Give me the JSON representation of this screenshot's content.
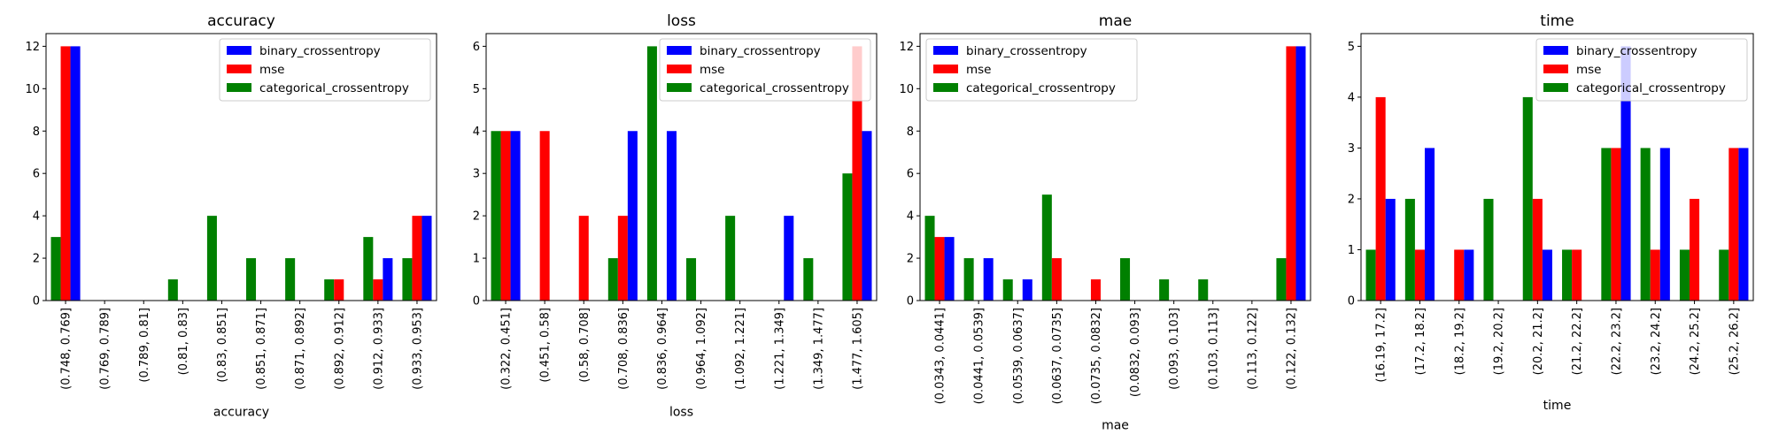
{
  "colors": {
    "binary_crossentropy": "#0000ff",
    "mse": "#ff0000",
    "categorical_crossentropy": "#008000"
  },
  "chart_data": [
    {
      "type": "bar",
      "title": "accuracy",
      "xlabel": "accuracy",
      "ylabel": "",
      "ylim": [
        0,
        12.6
      ],
      "yticks": [
        0,
        2,
        4,
        6,
        8,
        10,
        12
      ],
      "legend_position": "upper right",
      "categories": [
        "(0.748, 0.769]",
        "(0.769, 0.789]",
        "(0.789, 0.81]",
        "(0.81, 0.83]",
        "(0.83, 0.851]",
        "(0.851, 0.871]",
        "(0.871, 0.892]",
        "(0.892, 0.912]",
        "(0.912, 0.933]",
        "(0.933, 0.953]"
      ],
      "series": [
        {
          "name": "categorical_crossentropy",
          "values": [
            3,
            0,
            0,
            1,
            4,
            2,
            2,
            1,
            3,
            2
          ]
        },
        {
          "name": "mse",
          "values": [
            12,
            0,
            0,
            0,
            0,
            0,
            0,
            1,
            1,
            4
          ]
        },
        {
          "name": "binary_crossentropy",
          "values": [
            12,
            0,
            0,
            0,
            0,
            0,
            0,
            0,
            2,
            4
          ]
        }
      ]
    },
    {
      "type": "bar",
      "title": "loss",
      "xlabel": "loss",
      "ylabel": "",
      "ylim": [
        0,
        6.3
      ],
      "yticks": [
        0,
        1,
        2,
        3,
        4,
        5,
        6
      ],
      "legend_position": "upper right",
      "categories": [
        "(0.322, 0.451]",
        "(0.451, 0.58]",
        "(0.58, 0.708]",
        "(0.708, 0.836]",
        "(0.836, 0.964]",
        "(0.964, 1.092]",
        "(1.092, 1.221]",
        "(1.221, 1.349]",
        "(1.349, 1.477]",
        "(1.477, 1.605]"
      ],
      "series": [
        {
          "name": "categorical_crossentropy",
          "values": [
            4,
            0,
            0,
            1,
            6,
            1,
            2,
            0,
            1,
            3
          ]
        },
        {
          "name": "mse",
          "values": [
            4,
            4,
            2,
            2,
            0,
            0,
            0,
            0,
            0,
            6
          ]
        },
        {
          "name": "binary_crossentropy",
          "values": [
            4,
            0,
            0,
            4,
            4,
            0,
            0,
            2,
            0,
            4
          ]
        }
      ]
    },
    {
      "type": "bar",
      "title": "mae",
      "xlabel": "mae",
      "ylabel": "",
      "ylim": [
        0,
        12.6
      ],
      "yticks": [
        0,
        2,
        4,
        6,
        8,
        10,
        12
      ],
      "legend_position": "upper left",
      "categories": [
        "(0.0343, 0.0441]",
        "(0.0441, 0.0539]",
        "(0.0539, 0.0637]",
        "(0.0637, 0.0735]",
        "(0.0735, 0.0832]",
        "(0.0832, 0.093]",
        "(0.093, 0.103]",
        "(0.103, 0.113]",
        "(0.113, 0.122]",
        "(0.122, 0.132]"
      ],
      "series": [
        {
          "name": "categorical_crossentropy",
          "values": [
            4,
            2,
            1,
            5,
            0,
            2,
            1,
            1,
            0,
            2
          ]
        },
        {
          "name": "mse",
          "values": [
            3,
            0,
            0,
            2,
            1,
            0,
            0,
            0,
            0,
            12
          ]
        },
        {
          "name": "binary_crossentropy",
          "values": [
            3,
            2,
            1,
            0,
            0,
            0,
            0,
            0,
            0,
            12
          ]
        }
      ]
    },
    {
      "type": "bar",
      "title": "time",
      "xlabel": "time",
      "ylabel": "",
      "ylim": [
        0,
        5.25
      ],
      "yticks": [
        0,
        1,
        2,
        3,
        4,
        5
      ],
      "legend_position": "upper right",
      "categories": [
        "(16.19, 17.2]",
        "(17.2, 18.2]",
        "(18.2, 19.2]",
        "(19.2, 20.2]",
        "(20.2, 21.2]",
        "(21.2, 22.2]",
        "(22.2, 23.2]",
        "(23.2, 24.2]",
        "(24.2, 25.2]",
        "(25.2, 26.2]"
      ],
      "series": [
        {
          "name": "categorical_crossentropy",
          "values": [
            1,
            2,
            0,
            2,
            4,
            1,
            3,
            3,
            1,
            1
          ]
        },
        {
          "name": "mse",
          "values": [
            4,
            1,
            1,
            0,
            2,
            1,
            3,
            1,
            2,
            3
          ]
        },
        {
          "name": "binary_crossentropy",
          "values": [
            2,
            3,
            1,
            0,
            1,
            0,
            5,
            3,
            0,
            3
          ]
        }
      ]
    }
  ],
  "legend_order": [
    "binary_crossentropy",
    "mse",
    "categorical_crossentropy"
  ]
}
